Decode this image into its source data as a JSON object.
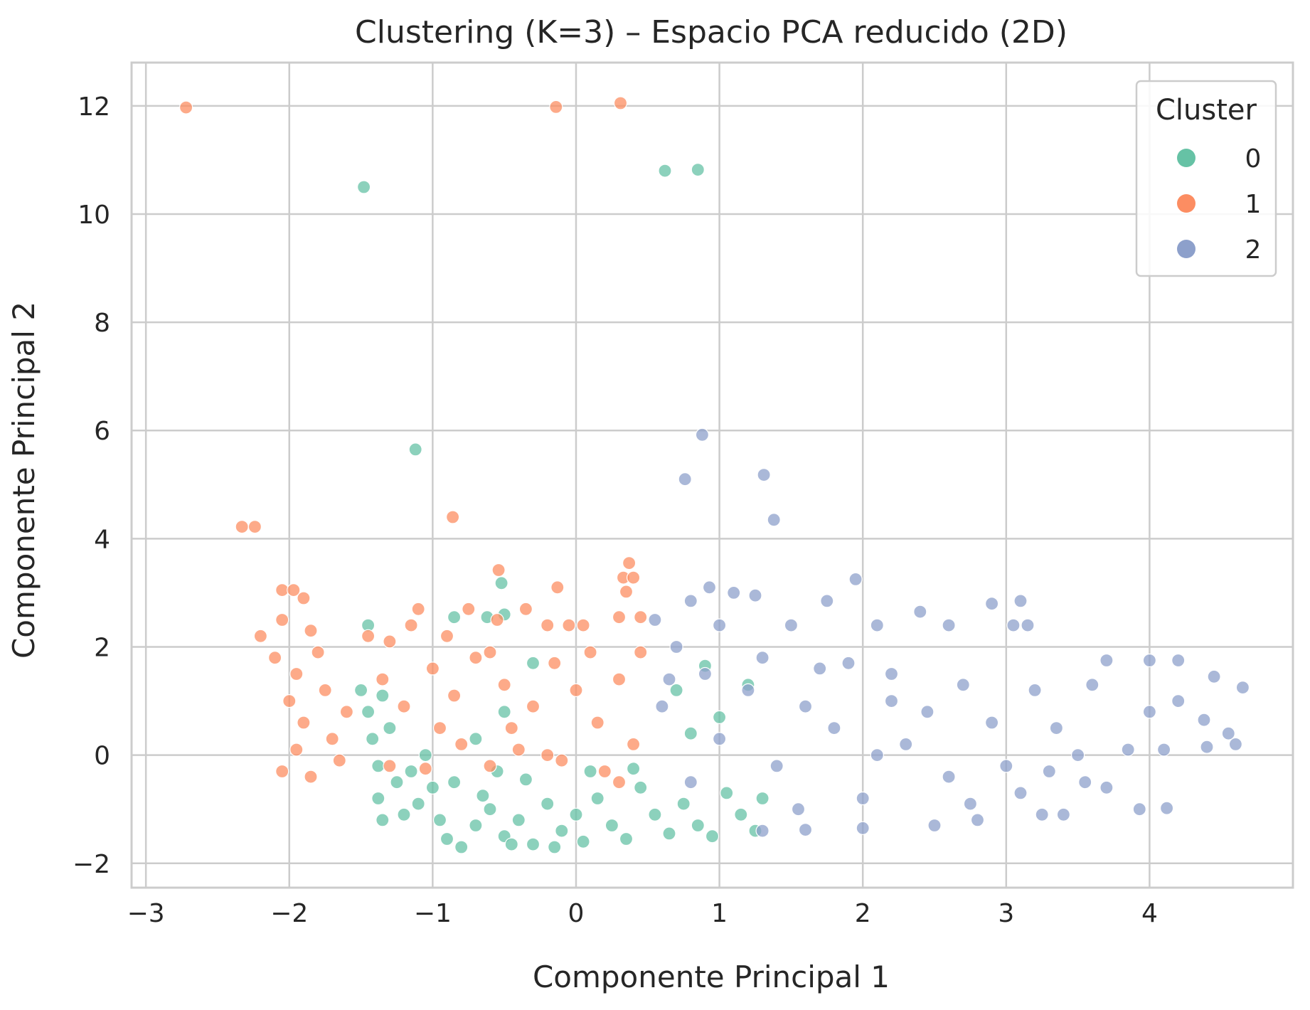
{
  "chart_data": {
    "type": "scatter",
    "title": "Clustering (K=3) – Espacio PCA reducido (2D)",
    "xlabel": "Componente Principal 1",
    "ylabel": "Componente Principal 2",
    "xlim": [
      -3.1,
      5.0
    ],
    "ylim": [
      -2.45,
      12.8
    ],
    "xticks": [
      -3,
      -2,
      -1,
      0,
      1,
      2,
      3,
      4
    ],
    "xtick_labels": [
      "−3",
      "−2",
      "−1",
      "0",
      "1",
      "2",
      "3",
      "4"
    ],
    "yticks": [
      -2,
      0,
      2,
      4,
      6,
      8,
      10,
      12
    ],
    "ytick_labels": [
      "−2",
      "0",
      "2",
      "4",
      "6",
      "8",
      "10",
      "12"
    ],
    "grid": true,
    "legend": {
      "title": "Cluster",
      "placement": "top-right"
    },
    "series": [
      {
        "name": "0",
        "color": "#66c2a5",
        "points": [
          [
            -1.48,
            10.5
          ],
          [
            0.62,
            10.8
          ],
          [
            0.85,
            10.82
          ],
          [
            -1.12,
            5.65
          ],
          [
            -1.45,
            2.4
          ],
          [
            -0.52,
            3.18
          ],
          [
            -0.85,
            2.55
          ],
          [
            -0.62,
            2.55
          ],
          [
            -0.5,
            2.6
          ],
          [
            -1.5,
            1.2
          ],
          [
            -1.45,
            0.8
          ],
          [
            -1.35,
            1.1
          ],
          [
            -1.42,
            0.3
          ],
          [
            -1.3,
            0.5
          ],
          [
            -1.38,
            -0.2
          ],
          [
            -1.25,
            -0.5
          ],
          [
            -1.38,
            -0.8
          ],
          [
            -1.2,
            -1.1
          ],
          [
            -1.35,
            -1.2
          ],
          [
            -1.1,
            -0.9
          ],
          [
            -1.0,
            -0.6
          ],
          [
            -0.95,
            -1.2
          ],
          [
            -0.9,
            -1.55
          ],
          [
            -0.8,
            -1.7
          ],
          [
            -0.7,
            -1.3
          ],
          [
            -0.6,
            -1.0
          ],
          [
            -0.5,
            -1.5
          ],
          [
            -0.4,
            -1.2
          ],
          [
            -0.3,
            -1.65
          ],
          [
            -0.2,
            -0.9
          ],
          [
            -0.1,
            -1.4
          ],
          [
            0.0,
            -1.1
          ],
          [
            0.05,
            -1.6
          ],
          [
            0.15,
            -0.8
          ],
          [
            0.25,
            -1.3
          ],
          [
            0.35,
            -1.55
          ],
          [
            0.45,
            -0.6
          ],
          [
            0.55,
            -1.1
          ],
          [
            0.65,
            -1.45
          ],
          [
            0.75,
            -0.9
          ],
          [
            0.85,
            -1.3
          ],
          [
            0.95,
            -1.5
          ],
          [
            1.05,
            -0.7
          ],
          [
            1.15,
            -1.1
          ],
          [
            1.25,
            -1.4
          ],
          [
            1.3,
            -0.8
          ],
          [
            0.9,
            1.65
          ],
          [
            0.7,
            1.2
          ],
          [
            -0.7,
            0.3
          ],
          [
            -0.5,
            0.8
          ],
          [
            -0.3,
            1.7
          ],
          [
            -0.55,
            -0.3
          ],
          [
            -0.85,
            -0.5
          ],
          [
            -1.05,
            0.0
          ],
          [
            -1.15,
            -0.3
          ],
          [
            -0.65,
            -0.75
          ],
          [
            -0.35,
            -0.45
          ],
          [
            0.1,
            -0.3
          ],
          [
            0.4,
            -0.25
          ],
          [
            1.2,
            1.3
          ],
          [
            1.0,
            0.7
          ],
          [
            0.8,
            0.4
          ],
          [
            -0.15,
            -1.7
          ],
          [
            -0.45,
            -1.65
          ]
        ]
      },
      {
        "name": "1",
        "color": "#fc8d62",
        "points": [
          [
            -2.72,
            11.97
          ],
          [
            -0.14,
            11.98
          ],
          [
            0.31,
            12.05
          ],
          [
            -2.33,
            4.22
          ],
          [
            -2.24,
            4.22
          ],
          [
            -0.86,
            4.4
          ],
          [
            0.37,
            3.55
          ],
          [
            -0.54,
            3.42
          ],
          [
            0.33,
            3.28
          ],
          [
            0.4,
            3.28
          ],
          [
            -0.13,
            3.1
          ],
          [
            0.35,
            3.02
          ],
          [
            -2.05,
            3.05
          ],
          [
            -1.9,
            2.9
          ],
          [
            -1.97,
            3.05
          ],
          [
            -2.05,
            2.5
          ],
          [
            -2.2,
            2.2
          ],
          [
            -1.85,
            2.3
          ],
          [
            -2.1,
            1.8
          ],
          [
            -1.95,
            1.5
          ],
          [
            -2.0,
            1.0
          ],
          [
            -1.9,
            0.6
          ],
          [
            -1.95,
            0.1
          ],
          [
            -1.85,
            -0.4
          ],
          [
            -1.7,
            0.3
          ],
          [
            -1.75,
            1.2
          ],
          [
            -1.8,
            1.9
          ],
          [
            -1.65,
            -0.1
          ],
          [
            -1.6,
            0.8
          ],
          [
            -2.05,
            -0.3
          ],
          [
            -1.45,
            2.2
          ],
          [
            -1.3,
            2.1
          ],
          [
            -1.1,
            2.7
          ],
          [
            -1.15,
            2.4
          ],
          [
            -0.9,
            2.2
          ],
          [
            -0.75,
            2.7
          ],
          [
            -0.55,
            2.5
          ],
          [
            -0.35,
            2.7
          ],
          [
            -0.2,
            2.4
          ],
          [
            -0.05,
            2.4
          ],
          [
            0.05,
            2.4
          ],
          [
            0.3,
            2.55
          ],
          [
            0.45,
            2.55
          ],
          [
            -1.35,
            1.4
          ],
          [
            -1.2,
            0.9
          ],
          [
            -1.0,
            1.6
          ],
          [
            -0.85,
            1.1
          ],
          [
            -0.7,
            1.8
          ],
          [
            -0.5,
            1.3
          ],
          [
            -0.3,
            0.9
          ],
          [
            -0.15,
            1.7
          ],
          [
            0.0,
            1.2
          ],
          [
            0.15,
            0.6
          ],
          [
            0.3,
            1.4
          ],
          [
            0.4,
            0.2
          ],
          [
            -1.3,
            -0.2
          ],
          [
            -1.05,
            -0.25
          ],
          [
            -0.8,
            0.2
          ],
          [
            -0.6,
            -0.2
          ],
          [
            -0.4,
            0.1
          ],
          [
            -0.2,
            0.0
          ],
          [
            -0.1,
            -0.1
          ],
          [
            0.2,
            -0.3
          ],
          [
            0.3,
            -0.5
          ],
          [
            0.45,
            1.9
          ],
          [
            -0.6,
            1.9
          ],
          [
            -0.95,
            0.5
          ],
          [
            0.1,
            1.9
          ],
          [
            -0.45,
            0.5
          ]
        ]
      },
      {
        "name": "2",
        "color": "#8da0cb",
        "points": [
          [
            0.88,
            5.92
          ],
          [
            0.76,
            5.1
          ],
          [
            1.31,
            5.18
          ],
          [
            1.38,
            4.35
          ],
          [
            1.95,
            3.25
          ],
          [
            0.93,
            3.1
          ],
          [
            1.1,
            3.0
          ],
          [
            1.25,
            2.95
          ],
          [
            0.8,
            2.85
          ],
          [
            1.75,
            2.85
          ],
          [
            2.9,
            2.8
          ],
          [
            3.1,
            2.85
          ],
          [
            2.4,
            2.65
          ],
          [
            0.55,
            2.5
          ],
          [
            1.0,
            2.4
          ],
          [
            1.5,
            2.4
          ],
          [
            2.1,
            2.4
          ],
          [
            2.6,
            2.4
          ],
          [
            3.05,
            2.4
          ],
          [
            3.15,
            2.4
          ],
          [
            0.7,
            2.0
          ],
          [
            1.3,
            1.8
          ],
          [
            1.7,
            1.6
          ],
          [
            2.2,
            1.5
          ],
          [
            2.7,
            1.3
          ],
          [
            3.2,
            1.2
          ],
          [
            3.6,
            1.3
          ],
          [
            3.7,
            1.75
          ],
          [
            4.0,
            1.75
          ],
          [
            4.2,
            1.75
          ],
          [
            4.45,
            1.45
          ],
          [
            4.65,
            1.25
          ],
          [
            4.2,
            1.0
          ],
          [
            4.0,
            0.8
          ],
          [
            3.85,
            0.1
          ],
          [
            4.1,
            0.1
          ],
          [
            4.4,
            0.15
          ],
          [
            4.6,
            0.2
          ],
          [
            4.55,
            0.4
          ],
          [
            4.38,
            0.65
          ],
          [
            3.5,
            0.0
          ],
          [
            3.3,
            -0.3
          ],
          [
            3.1,
            -0.7
          ],
          [
            3.25,
            -1.1
          ],
          [
            3.4,
            -1.1
          ],
          [
            3.7,
            -0.6
          ],
          [
            3.93,
            -1.0
          ],
          [
            4.12,
            -0.98
          ],
          [
            3.55,
            -0.5
          ],
          [
            2.8,
            -1.2
          ],
          [
            2.5,
            -1.3
          ],
          [
            2.0,
            -1.35
          ],
          [
            1.6,
            -1.38
          ],
          [
            1.3,
            -1.4
          ],
          [
            0.8,
            -0.5
          ],
          [
            0.6,
            0.9
          ],
          [
            1.0,
            0.3
          ],
          [
            1.4,
            -0.2
          ],
          [
            1.8,
            0.5
          ],
          [
            2.0,
            -0.8
          ],
          [
            2.3,
            0.2
          ],
          [
            2.6,
            -0.4
          ],
          [
            2.9,
            0.6
          ],
          [
            3.0,
            -0.2
          ],
          [
            2.2,
            1.0
          ],
          [
            1.6,
            0.9
          ],
          [
            1.2,
            1.2
          ],
          [
            0.9,
            1.5
          ],
          [
            1.9,
            1.7
          ],
          [
            2.45,
            0.8
          ],
          [
            3.35,
            0.5
          ],
          [
            2.75,
            -0.9
          ],
          [
            1.55,
            -1.0
          ],
          [
            0.65,
            1.4
          ],
          [
            2.1,
            0.0
          ]
        ]
      }
    ]
  }
}
